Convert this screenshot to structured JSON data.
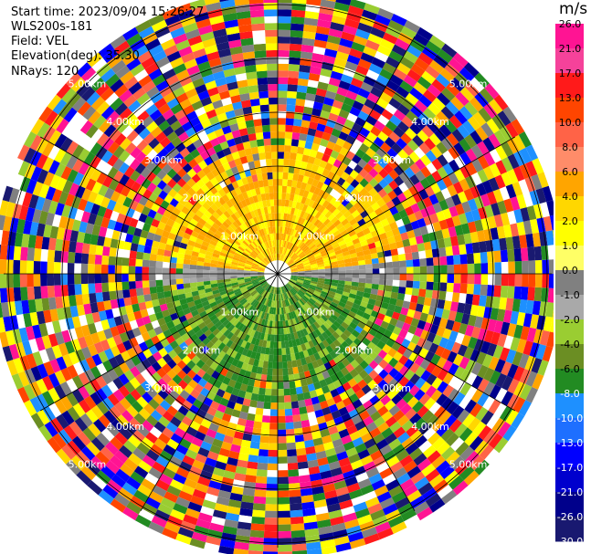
{
  "header": {
    "start_time": "Start time: 2023/09/04 15:26:27",
    "instrument": "WLS200s-181",
    "field": "Field: VEL",
    "elevation": "Elevation(deg): 35.30",
    "nrays": "NRays: 120"
  },
  "range_rings": [
    "1.00km",
    "2.00km",
    "3.00km",
    "4.00km",
    "5.00km"
  ],
  "colorbar": {
    "unit": "m/s",
    "ticks": [
      "26.0",
      "21.0",
      "17.0",
      "13.0",
      "10.0",
      "8.0",
      "6.0",
      "4.0",
      "2.0",
      "1.0",
      "0.0",
      "-1.0",
      "-2.0",
      "-4.0",
      "-6.0",
      "-8.0",
      "-10.0",
      "-13.0",
      "-17.0",
      "-21.0",
      "-26.0",
      "-30.0"
    ],
    "colors": [
      "#ff1493",
      "#f5429a",
      "#ff1a1a",
      "#ff4500",
      "#ff6347",
      "#ff8c69",
      "#ffa500",
      "#ffd700",
      "#ffff00",
      "#ffff66",
      "#808080",
      "#a9a9a9",
      "#9acd32",
      "#6b8e23",
      "#228b22",
      "#1e90ff",
      "#1e6fff",
      "#0000ff",
      "#0000cd",
      "#00008b",
      "#191970"
    ]
  },
  "palette": {
    "near_green": [
      "#228b22",
      "#6b8e23",
      "#9acd32",
      "#2e8b2e"
    ],
    "near_grey": [
      "#808080",
      "#a9a9a9",
      "#9a9a9a"
    ],
    "near_yellow": [
      "#ffff00",
      "#ffd700",
      "#ffa500",
      "#ffb400"
    ],
    "noise": [
      "#ff1493",
      "#ff1a1a",
      "#ff4500",
      "#ffa500",
      "#ffff00",
      "#9acd32",
      "#228b22",
      "#1e90ff",
      "#0000ff",
      "#00008b",
      "#191970",
      "#ff6347",
      "#ffffff",
      "#808080",
      "#6b8e23",
      "#ffd700"
    ]
  }
}
